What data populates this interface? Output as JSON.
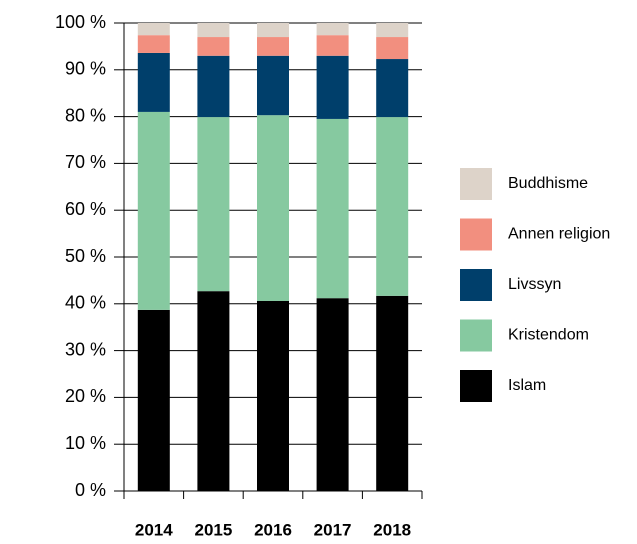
{
  "chart_data": {
    "type": "stacked_bar",
    "categories": [
      "2014",
      "2015",
      "2016",
      "2017",
      "2018"
    ],
    "series": [
      {
        "name": "Islam",
        "color": "#000000",
        "values": [
          38.7,
          42.7,
          40.6,
          41.2,
          41.7
        ]
      },
      {
        "name": "Kristendom",
        "color": "#86c9a0",
        "values": [
          42.3,
          37.2,
          39.7,
          38.3,
          38.2
        ]
      },
      {
        "name": "Livssyn",
        "color": "#003f6b",
        "values": [
          12.6,
          13.1,
          12.7,
          13.5,
          12.4
        ]
      },
      {
        "name": "Annen religion",
        "color": "#f28f7f",
        "values": [
          3.8,
          4.0,
          4.0,
          4.4,
          4.7
        ]
      },
      {
        "name": "Buddhisme",
        "color": "#ddd3c9",
        "values": [
          2.6,
          3.0,
          3.0,
          2.6,
          3.0
        ]
      }
    ],
    "ylim": [
      0,
      100
    ],
    "yticks": [
      {
        "value": 0,
        "label": "0 %"
      },
      {
        "value": 10,
        "label": "10 %"
      },
      {
        "value": 20,
        "label": "20 %"
      },
      {
        "value": 30,
        "label": "30 %"
      },
      {
        "value": 40,
        "label": "40 %"
      },
      {
        "value": 50,
        "label": "50 %"
      },
      {
        "value": 60,
        "label": "60 %"
      },
      {
        "value": 70,
        "label": "70 %"
      },
      {
        "value": 80,
        "label": "80 %"
      },
      {
        "value": 90,
        "label": "90 %"
      },
      {
        "value": 100,
        "label": "100 %"
      }
    ],
    "grid": true,
    "legend": "right"
  }
}
